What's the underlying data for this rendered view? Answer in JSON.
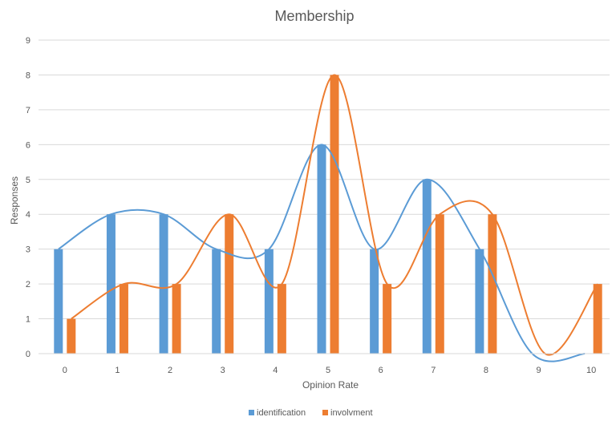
{
  "chart_data": {
    "type": "bar",
    "title": "Membership",
    "xlabel": "Opinion Rate",
    "ylabel": "Responses",
    "categories": [
      "0",
      "1",
      "2",
      "3",
      "4",
      "5",
      "6",
      "7",
      "8",
      "9",
      "10"
    ],
    "ylim": [
      0,
      9
    ],
    "yticks": [
      "0",
      "1",
      "2",
      "3",
      "4",
      "5",
      "6",
      "7",
      "8",
      "9"
    ],
    "grid": true,
    "legend_position": "bottom",
    "smoothed_trendlines": true,
    "series": [
      {
        "name": "identification",
        "color": "#5B9BD5",
        "values": [
          3,
          4,
          4,
          3,
          3,
          6,
          3,
          5,
          3,
          0,
          0
        ]
      },
      {
        "name": "involvment",
        "color": "#ED7D31",
        "values": [
          1,
          2,
          2,
          4,
          2,
          8,
          2,
          4,
          4,
          0,
          2
        ]
      }
    ]
  }
}
